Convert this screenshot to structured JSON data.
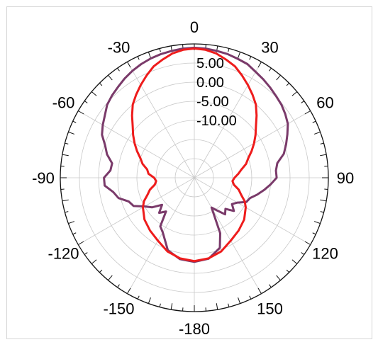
{
  "chart_data": {
    "type": "polar",
    "angular_labels": [
      "0",
      "30",
      "60",
      "90",
      "120",
      "150",
      "-180",
      "-150",
      "-120",
      "-90",
      "-60",
      "-30"
    ],
    "angular_label_angles": [
      0,
      30,
      60,
      90,
      120,
      150,
      180,
      -150,
      -120,
      -90,
      -60,
      -30
    ],
    "radial_labels": [
      "5.00",
      "0.00",
      "-5.00",
      "-10.00"
    ],
    "radial_values": [
      5,
      0,
      -5,
      -10
    ],
    "rlim": [
      -25,
      10
    ],
    "angle_direction": "clockwise, 0 at top",
    "grid": true,
    "legend": "none",
    "series": [
      {
        "color": "#7a3a6a",
        "points": [
          [
            -180,
            -3
          ],
          [
            -170,
            -3.4
          ],
          [
            -160,
            -4.8
          ],
          [
            -150,
            -8.5
          ],
          [
            -145,
            -9.5
          ],
          [
            -140,
            -13.5
          ],
          [
            -135,
            -12
          ],
          [
            -130,
            -14
          ],
          [
            -125,
            -11.5
          ],
          [
            -120,
            -10
          ],
          [
            -115,
            -7.5
          ],
          [
            -110,
            -6.8
          ],
          [
            -105,
            -4.5
          ],
          [
            -100,
            -3.5
          ],
          [
            -95,
            -1.5
          ],
          [
            -90,
            -1.4
          ],
          [
            -85,
            -3
          ],
          [
            -80,
            -3.2
          ],
          [
            -75,
            -1.4
          ],
          [
            -70,
            -0.2
          ],
          [
            -65,
            1.6
          ],
          [
            -60,
            2.6
          ],
          [
            -55,
            3.5
          ],
          [
            -50,
            4.7
          ],
          [
            -45,
            5.4
          ],
          [
            -40,
            6.0
          ],
          [
            -35,
            6.7
          ],
          [
            -30,
            7.3
          ],
          [
            -25,
            7.8
          ],
          [
            -20,
            8.2
          ],
          [
            -15,
            8.5
          ],
          [
            -10,
            8.7
          ],
          [
            -5,
            8.9
          ],
          [
            0,
            9.0
          ],
          [
            5,
            8.9
          ],
          [
            10,
            8.7
          ],
          [
            15,
            8.5
          ],
          [
            20,
            8.1
          ],
          [
            25,
            7.8
          ],
          [
            30,
            7.0
          ],
          [
            35,
            6.4
          ],
          [
            40,
            5.8
          ],
          [
            45,
            5.2
          ],
          [
            50,
            4.7
          ],
          [
            55,
            4.0
          ],
          [
            60,
            3.2
          ],
          [
            65,
            1.8
          ],
          [
            70,
            0.5
          ],
          [
            75,
            -0.8
          ],
          [
            80,
            -3.0
          ],
          [
            85,
            -3.6
          ],
          [
            90,
            -3.5
          ],
          [
            95,
            -5.0
          ],
          [
            100,
            -6.5
          ],
          [
            105,
            -8.0
          ],
          [
            110,
            -9.5
          ],
          [
            115,
            -10.0
          ],
          [
            120,
            -12.0
          ],
          [
            125,
            -13.0
          ],
          [
            130,
            -11.5
          ],
          [
            135,
            -13.5
          ],
          [
            140,
            -12.5
          ],
          [
            145,
            -14.5
          ],
          [
            150,
            -16
          ],
          [
            155,
            -9
          ],
          [
            160,
            -5.5
          ],
          [
            170,
            -3.5
          ],
          [
            180,
            -3
          ]
        ]
      },
      {
        "color": "#ee1c1c",
        "points": [
          [
            -180,
            -3.2
          ],
          [
            -170,
            -3.6
          ],
          [
            -160,
            -4.5
          ],
          [
            -150,
            -6.0
          ],
          [
            -140,
            -7.0
          ],
          [
            -130,
            -8.0
          ],
          [
            -120,
            -9.5
          ],
          [
            -115,
            -10.5
          ],
          [
            -110,
            -12.0
          ],
          [
            -105,
            -13.0
          ],
          [
            -100,
            -14.5
          ],
          [
            -95,
            -15.0
          ],
          [
            -90,
            -14.5
          ],
          [
            -85,
            -13.0
          ],
          [
            -80,
            -12.5
          ],
          [
            -75,
            -11.0
          ],
          [
            -70,
            -10.0
          ],
          [
            -65,
            -8.5
          ],
          [
            -60,
            -7.0
          ],
          [
            -55,
            -5.5
          ],
          [
            -50,
            -4.0
          ],
          [
            -45,
            -2.0
          ],
          [
            -40,
            0.0
          ],
          [
            -35,
            1.5
          ],
          [
            -30,
            3.0
          ],
          [
            -25,
            4.5
          ],
          [
            -20,
            6.0
          ],
          [
            -15,
            7.0
          ],
          [
            -10,
            8.0
          ],
          [
            -5,
            8.6
          ],
          [
            0,
            8.8
          ],
          [
            5,
            8.6
          ],
          [
            10,
            8.0
          ],
          [
            15,
            7.0
          ],
          [
            20,
            6.0
          ],
          [
            25,
            4.5
          ],
          [
            30,
            3.0
          ],
          [
            35,
            1.5
          ],
          [
            40,
            0.0
          ],
          [
            45,
            -2.0
          ],
          [
            50,
            -4.0
          ],
          [
            55,
            -5.5
          ],
          [
            60,
            -7.0
          ],
          [
            65,
            -8.5
          ],
          [
            70,
            -10.0
          ],
          [
            75,
            -11.0
          ],
          [
            80,
            -12.5
          ],
          [
            85,
            -13.5
          ],
          [
            90,
            -14.5
          ],
          [
            95,
            -15.0
          ],
          [
            100,
            -14.5
          ],
          [
            105,
            -13.0
          ],
          [
            110,
            -12.0
          ],
          [
            115,
            -10.5
          ],
          [
            120,
            -9.5
          ],
          [
            130,
            -8.0
          ],
          [
            140,
            -7.0
          ],
          [
            150,
            -6.0
          ],
          [
            160,
            -4.5
          ],
          [
            170,
            -3.6
          ],
          [
            180,
            -3.2
          ]
        ]
      }
    ]
  }
}
